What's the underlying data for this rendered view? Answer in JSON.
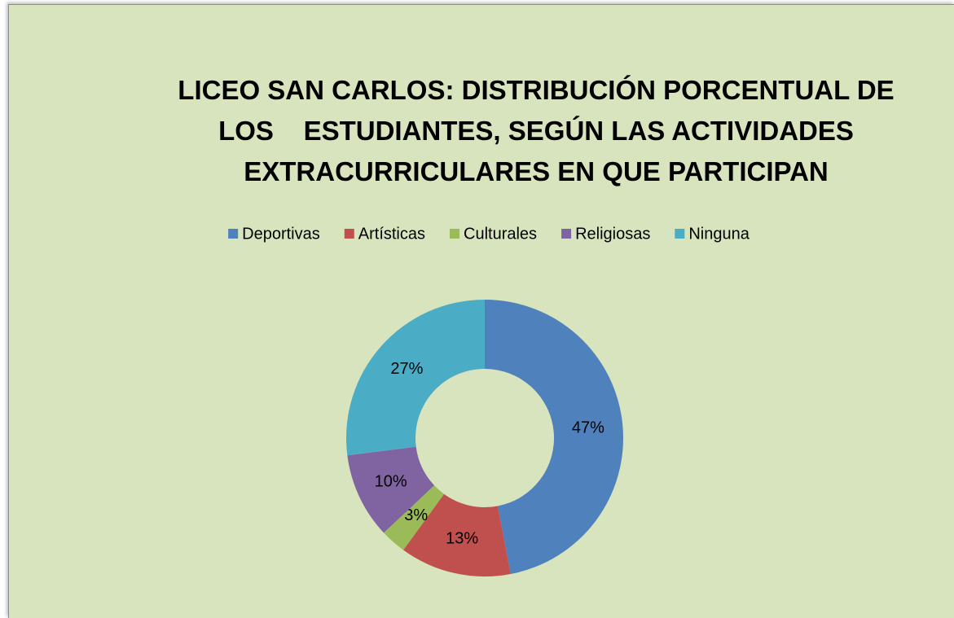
{
  "chart_data": {
    "type": "donut",
    "title": "LICEO SAN CARLOS: DISTRIBUCIÓN PORCENTUAL DE\nLOS    ESTUDIANTES, SEGÚN LAS ACTIVIDADES\nEXTRACURRICULARES EN QUE PARTICIPAN",
    "categories": [
      "Deportivas",
      "Artísticas",
      "Culturales",
      "Religiosas",
      "Ninguna"
    ],
    "values": [
      47,
      13,
      3,
      10,
      27
    ],
    "value_labels": [
      "47%",
      "13%",
      "3%",
      "10%",
      "27%"
    ],
    "colors": [
      "#4f81bd",
      "#c0504d",
      "#9bbb59",
      "#8064a2",
      "#4bacc6"
    ],
    "legend": "top"
  }
}
